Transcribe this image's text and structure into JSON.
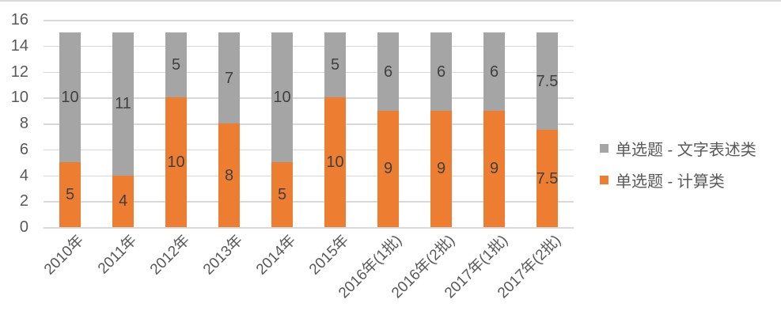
{
  "chart_data": {
    "type": "bar",
    "stacked": true,
    "title": "",
    "categories": [
      "2010年",
      "2011年",
      "2012年",
      "2013年",
      "2014年",
      "2015年",
      "2016年(1批)",
      "2016年(2批)",
      "2017年(1批)",
      "2017年(2批)"
    ],
    "series": [
      {
        "name": "单选题 - 计算类",
        "color": "#ED7D31",
        "values": [
          5,
          4,
          10,
          8,
          5,
          10,
          9,
          9,
          9,
          7.5
        ]
      },
      {
        "name": "单选题 - 文字表述类",
        "color": "#A5A5A5",
        "values": [
          10,
          11,
          5,
          7,
          10,
          5,
          6,
          6,
          6,
          7.5
        ]
      }
    ],
    "ylim": [
      0,
      16
    ],
    "ytick_step": 2,
    "yticks": [
      0,
      2,
      4,
      6,
      8,
      10,
      12,
      14,
      16
    ],
    "grid": true,
    "legend_position": "right",
    "colors": {
      "gridline": "#D9D9D9",
      "axis_text": "#595959",
      "data_label": "#404040",
      "legend_text": "#595959",
      "background": "#FFFFFF",
      "top_border": "#D9D9D9"
    }
  }
}
